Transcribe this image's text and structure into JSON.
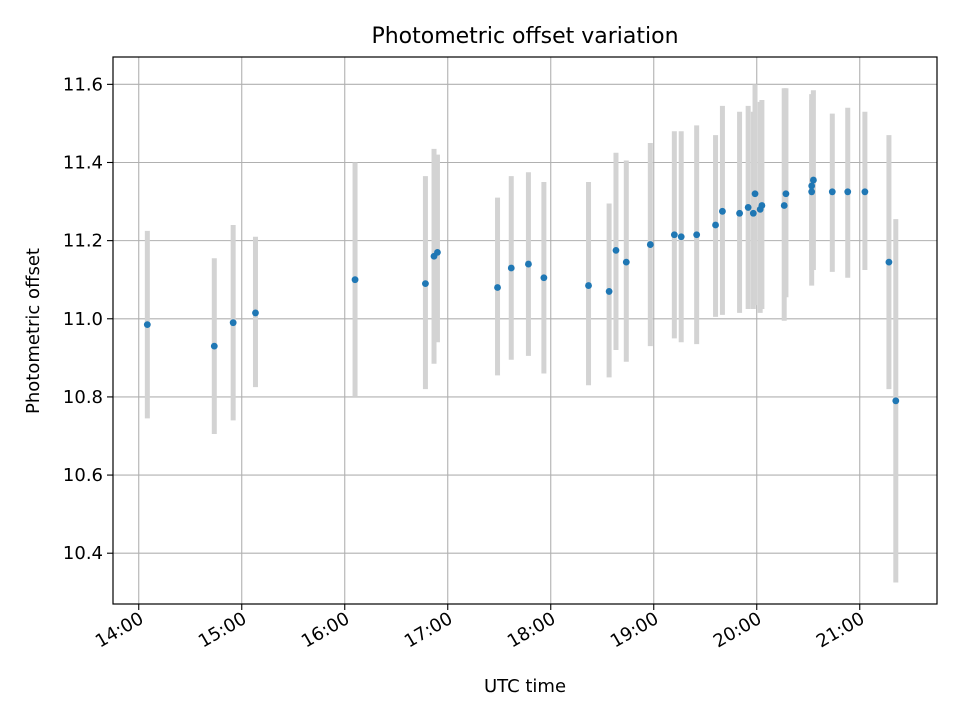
{
  "chart_data": {
    "type": "scatter",
    "title": "Photometric offset variation",
    "xlabel": "UTC time",
    "ylabel": "Photometric offset",
    "x_unit": "hour",
    "xlim": [
      "13:45",
      "21:45"
    ],
    "ylim": [
      10.27,
      11.67
    ],
    "x_ticks": [
      "14:00",
      "15:00",
      "16:00",
      "17:00",
      "18:00",
      "19:00",
      "20:00",
      "21:00"
    ],
    "y_ticks": [
      "10.4",
      "10.6",
      "10.8",
      "11.0",
      "11.2",
      "11.4",
      "11.6"
    ],
    "grid": true,
    "point_color": "#1f77b4",
    "errorbar_color": "#d3d3d3",
    "points": [
      {
        "x": "14:05",
        "y": 10.985,
        "err_low": 10.745,
        "err_high": 11.225
      },
      {
        "x": "14:44",
        "y": 10.93,
        "err_low": 10.705,
        "err_high": 11.155
      },
      {
        "x": "14:55",
        "y": 10.99,
        "err_low": 10.74,
        "err_high": 11.24
      },
      {
        "x": "15:08",
        "y": 11.015,
        "err_low": 10.825,
        "err_high": 11.21
      },
      {
        "x": "16:06",
        "y": 11.1,
        "err_low": 10.8,
        "err_high": 11.4
      },
      {
        "x": "16:47",
        "y": 11.09,
        "err_low": 10.82,
        "err_high": 11.365
      },
      {
        "x": "16:52",
        "y": 11.16,
        "err_low": 10.885,
        "err_high": 11.435
      },
      {
        "x": "16:54",
        "y": 11.17,
        "err_low": 10.94,
        "err_high": 11.42
      },
      {
        "x": "17:29",
        "y": 11.08,
        "err_low": 10.855,
        "err_high": 11.31
      },
      {
        "x": "17:37",
        "y": 11.13,
        "err_low": 10.895,
        "err_high": 11.365
      },
      {
        "x": "17:47",
        "y": 11.14,
        "err_low": 10.905,
        "err_high": 11.375
      },
      {
        "x": "17:56",
        "y": 11.105,
        "err_low": 10.86,
        "err_high": 11.35
      },
      {
        "x": "18:22",
        "y": 11.085,
        "err_low": 10.83,
        "err_high": 11.35
      },
      {
        "x": "18:34",
        "y": 11.07,
        "err_low": 10.85,
        "err_high": 11.295
      },
      {
        "x": "18:38",
        "y": 11.175,
        "err_low": 10.92,
        "err_high": 11.425
      },
      {
        "x": "18:44",
        "y": 11.145,
        "err_low": 10.89,
        "err_high": 11.405
      },
      {
        "x": "18:58",
        "y": 11.19,
        "err_low": 10.93,
        "err_high": 11.45
      },
      {
        "x": "19:12",
        "y": 11.215,
        "err_low": 10.95,
        "err_high": 11.48
      },
      {
        "x": "19:16",
        "y": 11.21,
        "err_low": 10.94,
        "err_high": 11.48
      },
      {
        "x": "19:25",
        "y": 11.215,
        "err_low": 10.935,
        "err_high": 11.495
      },
      {
        "x": "19:36",
        "y": 11.24,
        "err_low": 11.005,
        "err_high": 11.47
      },
      {
        "x": "19:40",
        "y": 11.275,
        "err_low": 11.01,
        "err_high": 11.545
      },
      {
        "x": "19:50",
        "y": 11.27,
        "err_low": 11.015,
        "err_high": 11.53
      },
      {
        "x": "19:55",
        "y": 11.285,
        "err_low": 11.025,
        "err_high": 11.545
      },
      {
        "x": "19:58",
        "y": 11.27,
        "err_low": 11.025,
        "err_high": 11.53
      },
      {
        "x": "19:59",
        "y": 11.32,
        "err_low": 11.035,
        "err_high": 11.6
      },
      {
        "x": "20:02",
        "y": 11.28,
        "err_low": 11.015,
        "err_high": 11.555
      },
      {
        "x": "20:03",
        "y": 11.29,
        "err_low": 11.025,
        "err_high": 11.56
      },
      {
        "x": "20:16",
        "y": 11.29,
        "err_low": 10.995,
        "err_high": 11.59
      },
      {
        "x": "20:17",
        "y": 11.32,
        "err_low": 11.055,
        "err_high": 11.59
      },
      {
        "x": "20:32",
        "y": 11.325,
        "err_low": 11.085,
        "err_high": 11.575
      },
      {
        "x": "20:32",
        "y": 11.34,
        "err_low": 11.125,
        "err_high": 11.56
      },
      {
        "x": "20:33",
        "y": 11.355,
        "err_low": 11.125,
        "err_high": 11.585
      },
      {
        "x": "20:44",
        "y": 11.325,
        "err_low": 11.12,
        "err_high": 11.525
      },
      {
        "x": "20:53",
        "y": 11.325,
        "err_low": 11.105,
        "err_high": 11.54
      },
      {
        "x": "21:03",
        "y": 11.325,
        "err_low": 11.125,
        "err_high": 11.53
      },
      {
        "x": "21:17",
        "y": 11.145,
        "err_low": 10.82,
        "err_high": 11.47
      },
      {
        "x": "21:21",
        "y": 10.79,
        "err_low": 10.325,
        "err_high": 11.255
      }
    ]
  }
}
